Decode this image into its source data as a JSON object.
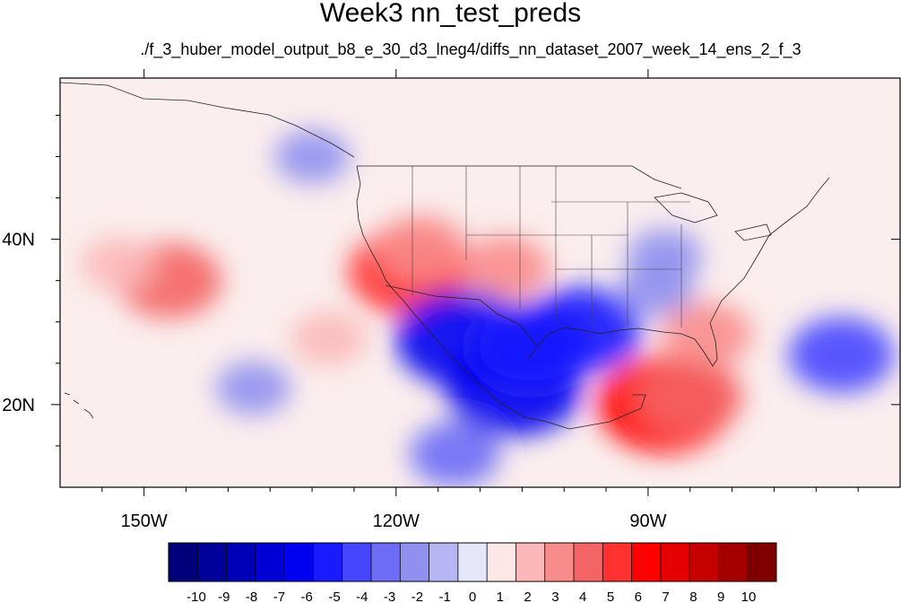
{
  "chart_data": {
    "type": "heatmap",
    "title": "Week3 nn_test_preds",
    "subtitle": "./f_3_huber_model_output_b8_e_30_d3_lneg4/diffs_nn_dataset_2007_week_14_ens_2_f_3",
    "x_range": [
      -160,
      -60
    ],
    "y_range": [
      10,
      59.5
    ],
    "x_ticks": [
      {
        "value": -150,
        "label": "150W"
      },
      {
        "value": -120,
        "label": "120W"
      },
      {
        "value": -90,
        "label": "90W"
      }
    ],
    "y_ticks": [
      {
        "value": 40,
        "label": "40N"
      },
      {
        "value": 20,
        "label": "20N"
      }
    ],
    "colorbar": {
      "labels": [
        "-10",
        "-9",
        "-8",
        "-7",
        "-6",
        "-5",
        "-4",
        "-3",
        "-2",
        "-1",
        "0",
        "1",
        "2",
        "3",
        "4",
        "5",
        "6",
        "7",
        "8",
        "9",
        "10"
      ],
      "colors": [
        "#00007a",
        "#00009a",
        "#0000b8",
        "#0000d6",
        "#0000f0",
        "#1a1aff",
        "#4646ff",
        "#6c6cf6",
        "#9090f0",
        "#b6b6f4",
        "#e6e6fa",
        "#fde6e6",
        "#fcb8b8",
        "#f88c8c",
        "#f46464",
        "#ff3030",
        "#ff0000",
        "#e40000",
        "#c40000",
        "#a40000",
        "#800000"
      ]
    },
    "anomalies": [
      {
        "lon": -147,
        "lat": 35,
        "value": 4
      },
      {
        "lon": -153,
        "lat": 37,
        "value": 2
      },
      {
        "lon": -118.5,
        "lat": 36,
        "value": 5
      },
      {
        "lon": -117,
        "lat": 39,
        "value": 3
      },
      {
        "lon": -107,
        "lat": 36.5,
        "value": 3
      },
      {
        "lon": -112,
        "lat": 28,
        "value": -6
      },
      {
        "lon": -106,
        "lat": 22,
        "value": -6
      },
      {
        "lon": -104,
        "lat": 27,
        "value": -5
      },
      {
        "lon": -98,
        "lat": 29,
        "value": -5
      },
      {
        "lon": -88,
        "lat": 20,
        "value": 6
      },
      {
        "lon": -85,
        "lat": 21,
        "value": 4
      },
      {
        "lon": -83,
        "lat": 28.5,
        "value": 3
      },
      {
        "lon": -67,
        "lat": 26,
        "value": -4
      },
      {
        "lon": -88,
        "lat": 38,
        "value": -2
      },
      {
        "lon": -89,
        "lat": 34,
        "value": -2
      },
      {
        "lon": -137,
        "lat": 22,
        "value": -2
      },
      {
        "lon": -113,
        "lat": 14,
        "value": -3
      },
      {
        "lon": -128,
        "lat": 28,
        "value": 2
      },
      {
        "lon": -130,
        "lat": 50,
        "value": -2
      }
    ]
  }
}
